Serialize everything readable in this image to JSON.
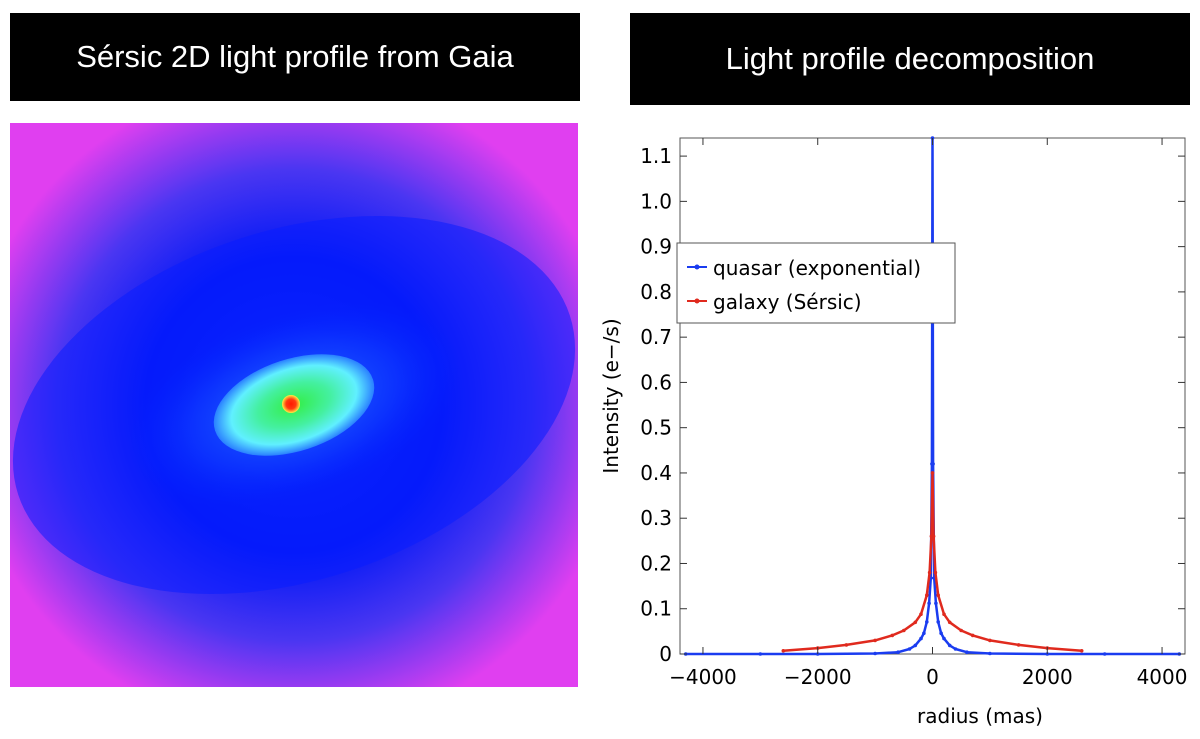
{
  "panels": {
    "left_title": "Sérsic 2D light profile from Gaia",
    "right_title": "Light profile decomposition"
  },
  "colors": {
    "quasar": "#1a3cf0",
    "galaxy": "#e02a1e",
    "map_edge": "#e040f0",
    "map_mid": "#0022ff",
    "map_core": "#33ee66",
    "map_peak": "#ff2200"
  },
  "chart_data": {
    "type": "line",
    "title": "Light profile decomposition",
    "xlabel": "radius (mas)",
    "ylabel": "Intensity (e−/s)",
    "xlim": [
      -4400,
      4400
    ],
    "ylim": [
      0,
      1.14
    ],
    "xticks": [
      -4000,
      -2000,
      0,
      2000,
      4000
    ],
    "xtick_labels": [
      "−4000",
      "−2000",
      "0",
      "2000",
      "4000"
    ],
    "yticks": [
      0,
      0.1,
      0.2,
      0.3,
      0.4,
      0.5,
      0.6,
      0.7,
      0.8,
      0.9,
      1.0,
      1.1
    ],
    "ytick_labels": [
      "0",
      "0.1",
      "0.2",
      "0.3",
      "0.4",
      "0.5",
      "0.6",
      "0.7",
      "0.8",
      "0.9",
      "1.0",
      "1.1"
    ],
    "grid": false,
    "legend_position": "upper-left",
    "series": [
      {
        "name": "quasar (exponential)",
        "color": "#1a3cf0",
        "x": [
          -4300,
          -3000,
          -2000,
          -1000,
          -600,
          -400,
          -300,
          -200,
          -150,
          -100,
          -60,
          -30,
          -10,
          0,
          10,
          30,
          60,
          100,
          150,
          200,
          300,
          400,
          600,
          1000,
          2000,
          3000,
          4300
        ],
        "y": [
          0,
          0,
          0,
          0.001,
          0.004,
          0.011,
          0.019,
          0.034,
          0.046,
          0.071,
          0.112,
          0.168,
          0.42,
          1.14,
          0.42,
          0.168,
          0.112,
          0.071,
          0.046,
          0.034,
          0.019,
          0.011,
          0.004,
          0.001,
          0,
          0,
          0
        ]
      },
      {
        "name": "galaxy (Sérsic)",
        "color": "#e02a1e",
        "x": [
          -2600,
          -2000,
          -1500,
          -1000,
          -700,
          -500,
          -300,
          -200,
          -100,
          -50,
          -20,
          0,
          20,
          50,
          100,
          200,
          300,
          500,
          700,
          1000,
          1500,
          2000,
          2600
        ],
        "y": [
          0.007,
          0.013,
          0.02,
          0.03,
          0.041,
          0.052,
          0.07,
          0.088,
          0.13,
          0.18,
          0.26,
          0.4,
          0.26,
          0.18,
          0.13,
          0.088,
          0.07,
          0.052,
          0.041,
          0.03,
          0.02,
          0.013,
          0.007
        ]
      }
    ]
  }
}
